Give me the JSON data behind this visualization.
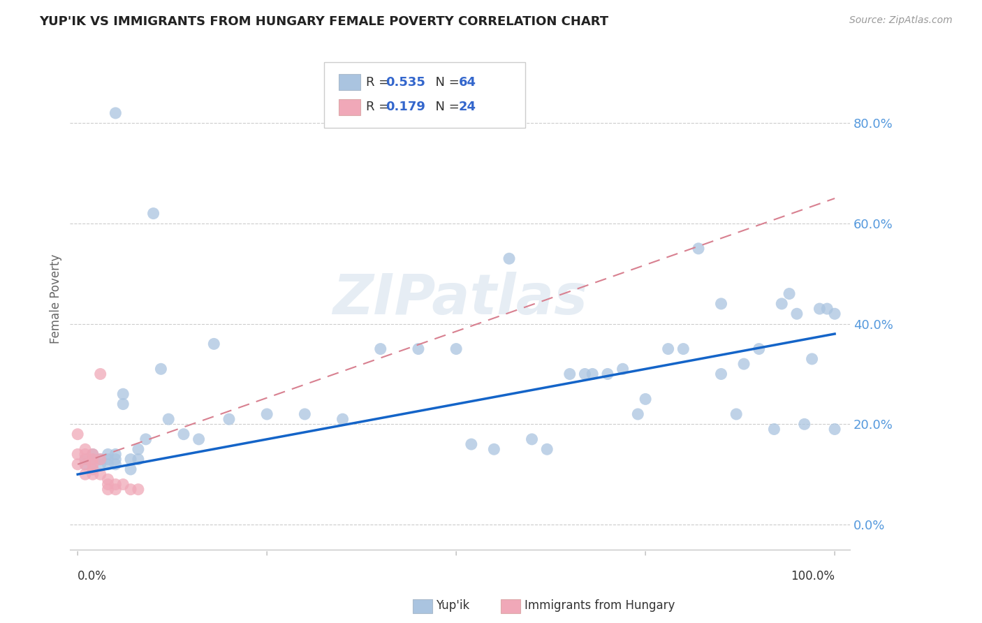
{
  "title": "YUP'IK VS IMMIGRANTS FROM HUNGARY FEMALE POVERTY CORRELATION CHART",
  "source": "Source: ZipAtlas.com",
  "ylabel": "Female Poverty",
  "ytick_labels": [
    "0.0%",
    "20.0%",
    "40.0%",
    "60.0%",
    "80.0%"
  ],
  "ytick_values": [
    0.0,
    0.2,
    0.4,
    0.6,
    0.8
  ],
  "xlim": [
    -0.01,
    1.02
  ],
  "ylim": [
    -0.05,
    0.95
  ],
  "legend1_r": "0.535",
  "legend1_n": "64",
  "legend2_r": "0.179",
  "legend2_n": "24",
  "color_blue": "#aac4e0",
  "color_pink": "#f0a8b8",
  "line_blue": "#1464c8",
  "line_pink_dash": "#d88090",
  "background": "#ffffff",
  "yupik_x": [
    0.01,
    0.01,
    0.02,
    0.02,
    0.02,
    0.03,
    0.03,
    0.04,
    0.04,
    0.04,
    0.05,
    0.05,
    0.05,
    0.06,
    0.06,
    0.07,
    0.07,
    0.08,
    0.08,
    0.09,
    0.1,
    0.11,
    0.12,
    0.14,
    0.16,
    0.18,
    0.2,
    0.25,
    0.3,
    0.35,
    0.4,
    0.45,
    0.5,
    0.52,
    0.55,
    0.57,
    0.6,
    0.62,
    0.65,
    0.67,
    0.68,
    0.7,
    0.72,
    0.74,
    0.75,
    0.78,
    0.8,
    0.82,
    0.85,
    0.85,
    0.87,
    0.88,
    0.9,
    0.92,
    0.93,
    0.94,
    0.95,
    0.96,
    0.97,
    0.98,
    0.99,
    1.0,
    1.0,
    0.05
  ],
  "yupik_y": [
    0.13,
    0.12,
    0.14,
    0.13,
    0.11,
    0.13,
    0.12,
    0.14,
    0.13,
    0.12,
    0.14,
    0.13,
    0.12,
    0.26,
    0.24,
    0.13,
    0.11,
    0.15,
    0.13,
    0.17,
    0.62,
    0.31,
    0.21,
    0.18,
    0.17,
    0.36,
    0.21,
    0.22,
    0.22,
    0.21,
    0.35,
    0.35,
    0.35,
    0.16,
    0.15,
    0.53,
    0.17,
    0.15,
    0.3,
    0.3,
    0.3,
    0.3,
    0.31,
    0.22,
    0.25,
    0.35,
    0.35,
    0.55,
    0.44,
    0.3,
    0.22,
    0.32,
    0.35,
    0.19,
    0.44,
    0.46,
    0.42,
    0.2,
    0.33,
    0.43,
    0.43,
    0.42,
    0.19,
    0.82
  ],
  "hungary_x": [
    0.0,
    0.0,
    0.0,
    0.01,
    0.01,
    0.01,
    0.01,
    0.01,
    0.02,
    0.02,
    0.02,
    0.02,
    0.02,
    0.03,
    0.03,
    0.03,
    0.04,
    0.04,
    0.04,
    0.05,
    0.05,
    0.06,
    0.07,
    0.08
  ],
  "hungary_y": [
    0.18,
    0.14,
    0.12,
    0.15,
    0.14,
    0.13,
    0.12,
    0.1,
    0.14,
    0.13,
    0.12,
    0.11,
    0.1,
    0.3,
    0.13,
    0.1,
    0.09,
    0.08,
    0.07,
    0.08,
    0.07,
    0.08,
    0.07,
    0.07
  ],
  "blue_line_x": [
    0.0,
    1.0
  ],
  "blue_line_y": [
    0.1,
    0.38
  ],
  "pink_line_x": [
    0.0,
    1.0
  ],
  "pink_line_y": [
    0.12,
    0.65
  ]
}
